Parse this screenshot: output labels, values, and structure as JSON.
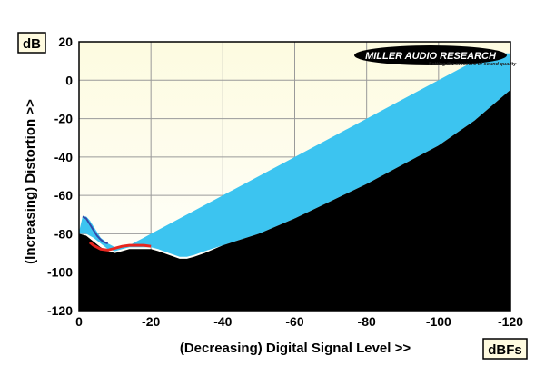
{
  "chart_data": {
    "type": "area",
    "x_unit_label": "dBFs",
    "y_unit_label": "dB",
    "xlabel": "(Decreasing) Digital Signal Level >>",
    "ylabel": "(Increasing) Distortion >>",
    "xlim": [
      0,
      -120
    ],
    "ylim": [
      -120,
      20
    ],
    "x_ticks": [
      {
        "value": 0,
        "label": "0"
      },
      {
        "value": -20,
        "label": "-20"
      },
      {
        "value": -40,
        "label": "-40"
      },
      {
        "value": -60,
        "label": "-60"
      },
      {
        "value": -80,
        "label": "-80"
      },
      {
        "value": -100,
        "label": "-100"
      },
      {
        "value": -120,
        "label": "-120"
      }
    ],
    "y_ticks": [
      {
        "value": 20,
        "label": "20"
      },
      {
        "value": 0,
        "label": "0"
      },
      {
        "value": -20,
        "label": "-20"
      },
      {
        "value": -40,
        "label": "-40"
      },
      {
        "value": -60,
        "label": "-60"
      },
      {
        "value": -80,
        "label": "-80"
      },
      {
        "value": -100,
        "label": "-100"
      },
      {
        "value": -120,
        "label": "-120"
      }
    ],
    "grid": true,
    "colors": {
      "plot_background": "#fdfbe0",
      "noise_floor": "#000000",
      "band": "#3cc4f0",
      "red_trace": "#e8261f",
      "blue_trace": "#3348a8"
    },
    "series": [
      {
        "key": "band_upper",
        "x": [
          0,
          -1,
          -2,
          -3,
          -4,
          -5,
          -6,
          -8,
          -10,
          -12,
          -14,
          -16,
          -18,
          -20,
          -30,
          -40,
          -50,
          -60,
          -70,
          -80,
          -90,
          -100,
          -110,
          -115,
          -120
        ],
        "y": [
          -79,
          -71,
          -71,
          -73,
          -76,
          -79,
          -82,
          -85,
          -87,
          -87,
          -86,
          -84,
          -82,
          -80,
          -70,
          -60,
          -50,
          -40,
          -30,
          -20,
          -10,
          0,
          10,
          14,
          14
        ]
      },
      {
        "key": "band_lower",
        "x": [
          0,
          -2,
          -4,
          -6,
          -8,
          -10,
          -12,
          -14,
          -16,
          -18,
          -20,
          -22,
          -25,
          -28,
          -30,
          -32,
          -35,
          -40,
          -50,
          -60,
          -70,
          -80,
          -90,
          -100,
          -110,
          -120
        ],
        "y": [
          -80,
          -80,
          -82,
          -85,
          -88,
          -89,
          -88,
          -87,
          -87,
          -87,
          -87,
          -88,
          -90,
          -92,
          -92,
          -91,
          -89,
          -86,
          -80,
          -72,
          -63,
          -54,
          -44,
          -34,
          -21,
          -5
        ]
      },
      {
        "key": "noise_floor",
        "x": [
          0,
          -2,
          -4,
          -6,
          -8,
          -10,
          -12,
          -14,
          -16,
          -18,
          -20,
          -22,
          -25,
          -28,
          -30,
          -32,
          -35,
          -40,
          -50,
          -60,
          -70,
          -80,
          -90,
          -100,
          -110,
          -120
        ],
        "y": [
          -80,
          -81,
          -84,
          -87,
          -89,
          -90,
          -89,
          -88,
          -88,
          -88,
          -88,
          -89,
          -91,
          -93,
          -93,
          -92,
          -90,
          -86,
          -80,
          -72,
          -63,
          -54,
          -44,
          -34,
          -21,
          -5
        ]
      },
      {
        "key": "red_trace",
        "x": [
          -3,
          -4,
          -6,
          -8,
          -10,
          -12,
          -14,
          -16,
          -18,
          -20
        ],
        "y": [
          -84.5,
          -86,
          -88,
          -88.5,
          -87.5,
          -86.5,
          -86,
          -86,
          -86,
          -86.5
        ]
      },
      {
        "key": "blue_trace",
        "x": [
          -1,
          -2,
          -3,
          -4,
          -5,
          -6,
          -7,
          -8
        ],
        "y": [
          -71,
          -72,
          -75,
          -78,
          -81,
          -83,
          -84.5,
          -85
        ]
      }
    ]
  },
  "logo": {
    "text": "MILLER AUDIO RESEARCH",
    "tagline": "Setting the measure of sound quality"
  }
}
